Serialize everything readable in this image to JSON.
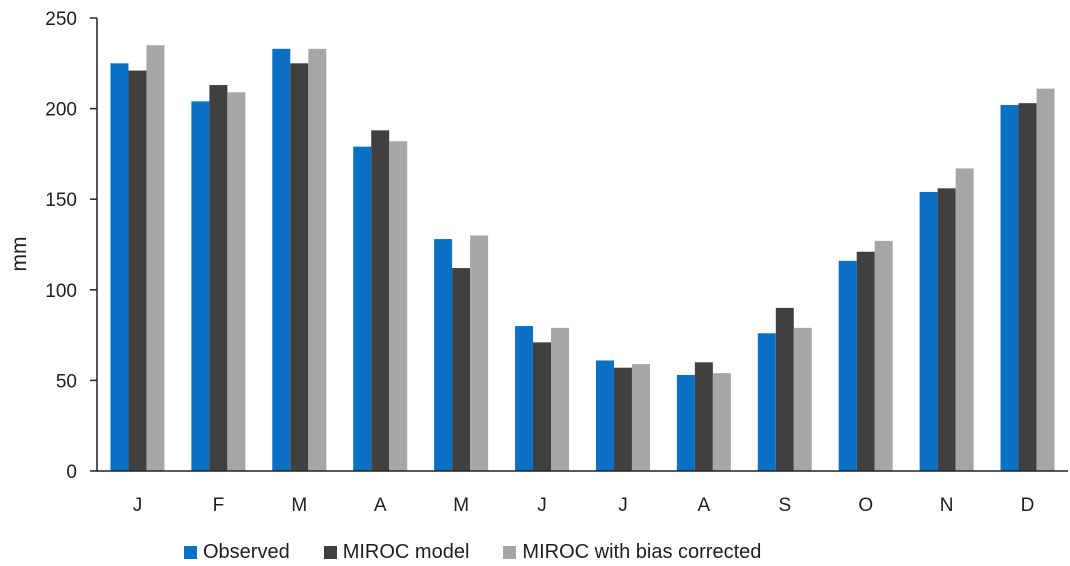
{
  "chart_data": {
    "type": "bar",
    "title": "",
    "xlabel": "",
    "ylabel": "mm",
    "ylim": [
      0,
      250
    ],
    "yticks": [
      0,
      50,
      100,
      150,
      200,
      250
    ],
    "categories": [
      "J",
      "F",
      "M",
      "A",
      "M",
      "J",
      "J",
      "A",
      "S",
      "O",
      "N",
      "D"
    ],
    "series": [
      {
        "name": "Observed",
        "color": "#0a70c4",
        "values": [
          225,
          204,
          233,
          179,
          128,
          80,
          61,
          53,
          76,
          116,
          154,
          202
        ]
      },
      {
        "name": "MIROC model",
        "color": "#404040",
        "values": [
          221,
          213,
          225,
          188,
          112,
          71,
          57,
          60,
          90,
          121,
          156,
          203
        ]
      },
      {
        "name": "MIROC with bias corrected",
        "color": "#a6a6a6",
        "values": [
          235,
          209,
          233,
          182,
          130,
          79,
          59,
          54,
          79,
          127,
          167,
          211
        ]
      }
    ],
    "grid": false,
    "legend_position": "bottom"
  }
}
